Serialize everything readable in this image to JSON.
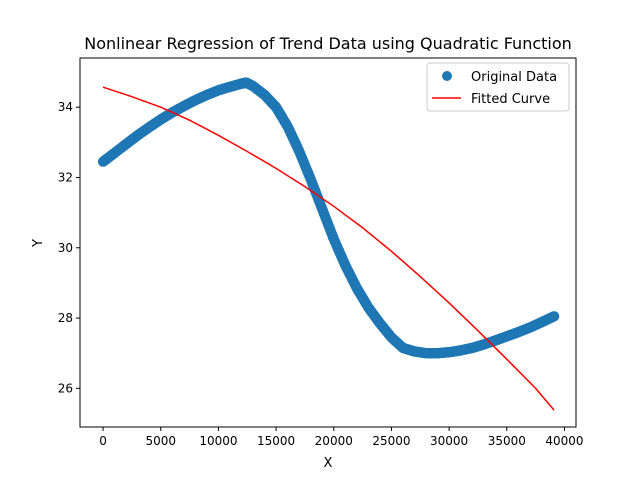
{
  "chart_data": {
    "type": "scatter",
    "title": "Nonlinear Regression of Trend Data using Quadratic Function",
    "xlabel": "X",
    "ylabel": "Y",
    "xlim": [
      -2000,
      41000
    ],
    "ylim": [
      24.9,
      35.4
    ],
    "xticks": [
      0,
      5000,
      10000,
      15000,
      20000,
      25000,
      30000,
      35000,
      40000
    ],
    "yticks": [
      26,
      28,
      30,
      32,
      34
    ],
    "grid": false,
    "legend_position": "top-right",
    "legend": [
      "Original Data",
      "Fitted Curve"
    ],
    "series": [
      {
        "name": "Original Data",
        "kind": "scatter",
        "color": "#1f77b4",
        "x": [
          0,
          1000,
          2000,
          3000,
          4000,
          5000,
          6000,
          7000,
          8000,
          9000,
          10000,
          11000,
          12000,
          12400,
          13000,
          14000,
          15000,
          16000,
          17000,
          18000,
          19000,
          20000,
          21000,
          22000,
          23000,
          24000,
          25000,
          26000,
          27000,
          28000,
          29000,
          30000,
          31000,
          32000,
          33000,
          34000,
          35000,
          36000,
          37000,
          38000,
          39100
        ],
        "y": [
          32.45,
          32.7,
          32.95,
          33.2,
          33.43,
          33.65,
          33.85,
          34.03,
          34.2,
          34.35,
          34.48,
          34.58,
          34.67,
          34.7,
          34.6,
          34.35,
          34.0,
          33.45,
          32.75,
          31.95,
          31.1,
          30.25,
          29.5,
          28.85,
          28.3,
          27.85,
          27.45,
          27.15,
          27.05,
          27.0,
          27.0,
          27.03,
          27.08,
          27.15,
          27.25,
          27.36,
          27.48,
          27.6,
          27.73,
          27.88,
          28.05
        ]
      },
      {
        "name": "Fitted Curve",
        "kind": "line",
        "color": "#ff0000",
        "x": [
          0,
          2500,
          5000,
          7500,
          10000,
          12500,
          15000,
          17500,
          20000,
          22500,
          25000,
          27500,
          30000,
          32500,
          35000,
          37500,
          39100
        ],
        "y": [
          34.57,
          34.3,
          34.0,
          33.63,
          33.2,
          32.74,
          32.26,
          31.74,
          31.18,
          30.57,
          29.9,
          29.18,
          28.43,
          27.64,
          26.83,
          26.0,
          25.38
        ]
      }
    ]
  }
}
